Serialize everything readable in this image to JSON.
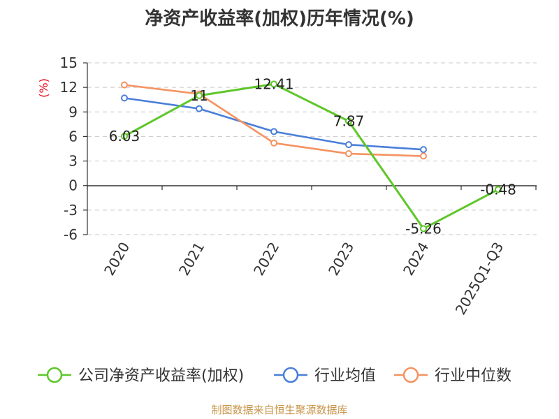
{
  "chart_data": {
    "type": "line",
    "title": "净资产收益率(加权)历年情况(%)",
    "ylabel": "(%)",
    "xlabel": "",
    "categories": [
      "2020",
      "2021",
      "2022",
      "2023",
      "2024",
      "2025Q1-Q3"
    ],
    "ylim": [
      -6,
      15
    ],
    "yticks": [
      15,
      12,
      9,
      6,
      3,
      0,
      -3,
      -6
    ],
    "ytick_labels": [
      "15",
      "12",
      "9",
      "6",
      "3",
      "0",
      "-3",
      "-6"
    ],
    "grid": true,
    "legend_position": "bottom",
    "series": [
      {
        "name": "公司净资产收益率(加权)",
        "color": "#5ec72a",
        "values": [
          6.03,
          11,
          12.41,
          7.87,
          -5.26,
          -0.48
        ],
        "labels": [
          "6.03",
          "11",
          "12.41",
          "7.87",
          "-5.26",
          "-0.48"
        ]
      },
      {
        "name": "行业均值",
        "color": "#4a7fd9",
        "values": [
          10.7,
          9.4,
          6.6,
          5.0,
          4.4,
          null
        ]
      },
      {
        "name": "行业中位数",
        "color": "#f59361",
        "values": [
          12.3,
          11.2,
          5.2,
          3.9,
          3.6,
          null
        ]
      }
    ],
    "source": "制图数据来自恒生聚源数据库"
  }
}
